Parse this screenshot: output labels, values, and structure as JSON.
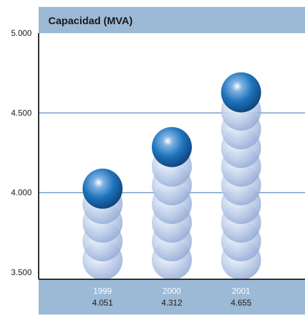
{
  "chart_data": {
    "type": "bar",
    "title": "Capacidad (MVA)",
    "categories": [
      "1999",
      "2000",
      "2001"
    ],
    "values": [
      4051,
      4312,
      4655
    ],
    "value_labels": [
      "4.051",
      "4.312",
      "4.655"
    ],
    "ylim": [
      3500,
      5000
    ],
    "yticks": [
      3500,
      4000,
      4500,
      5000
    ],
    "ytick_labels": [
      "3.500",
      "4.000",
      "4.500",
      "5.000"
    ],
    "gridlines": [
      4000,
      4500
    ],
    "grid": true,
    "colors": {
      "header_band": "#9cb9d6",
      "footer_band": "#9cb9d6",
      "gridline": "#6f9bc9",
      "frame": "#2b2b2b",
      "sphere_top": "#1e6fb5",
      "sphere_faded": "#c3d2ea"
    }
  }
}
